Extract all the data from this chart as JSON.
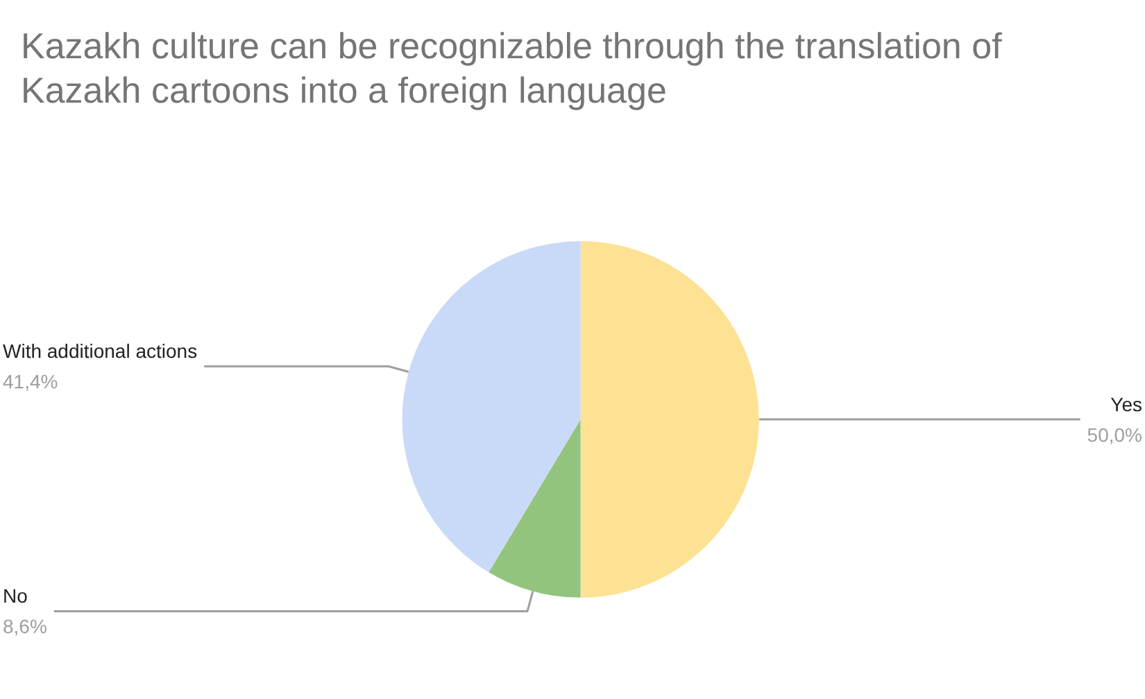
{
  "chart_data": {
    "type": "pie",
    "title": "Kazakh culture can be recognizable through the translation of Kazakh cartoons into a foreign language",
    "categories": [
      "Yes",
      "No",
      "With additional actions"
    ],
    "values": [
      50.0,
      8.6,
      41.4
    ],
    "value_labels": [
      "50,0%",
      "8,6%",
      "41,4%"
    ],
    "colors": [
      "#fde293",
      "#93c47d",
      "#c9daf8"
    ],
    "legend": false
  }
}
